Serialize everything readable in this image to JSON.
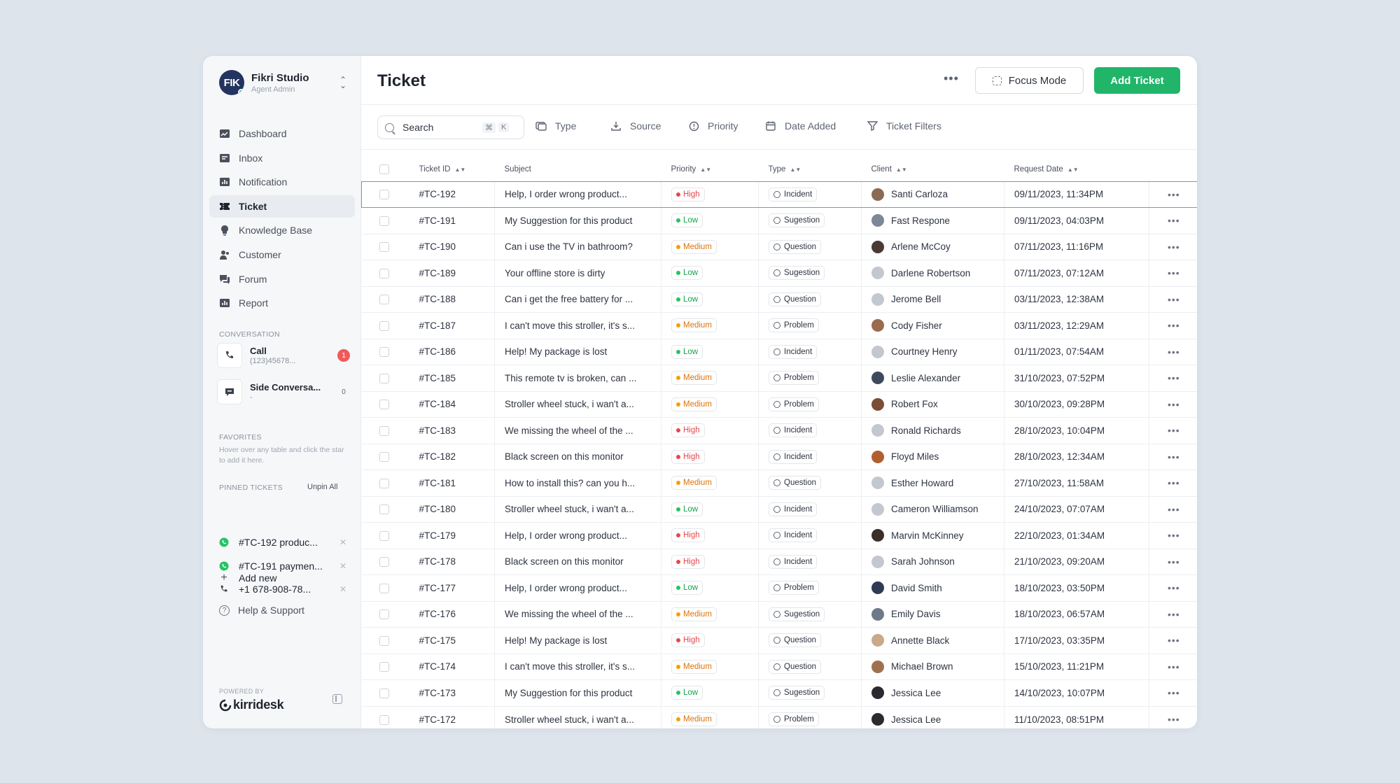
{
  "workspace": {
    "initials": "FIK",
    "name": "Fikri Studio",
    "role": "Agent Admin"
  },
  "nav": [
    {
      "label": "Dashboard",
      "icon": "dashboard-icon",
      "active": false
    },
    {
      "label": "Inbox",
      "icon": "inbox-icon",
      "active": false
    },
    {
      "label": "Notification",
      "icon": "notification-icon",
      "active": false
    },
    {
      "label": "Ticket",
      "icon": "ticket-icon",
      "active": true
    },
    {
      "label": "Knowledge Base",
      "icon": "knowledge-base-icon",
      "active": false
    },
    {
      "label": "Customer",
      "icon": "customer-icon",
      "active": false
    },
    {
      "label": "Forum",
      "icon": "forum-icon",
      "active": false
    },
    {
      "label": "Report",
      "icon": "report-icon",
      "active": false
    }
  ],
  "conversation": {
    "label": "CONVERSATION",
    "items": [
      {
        "title": "Call",
        "sub": "(123)45678...",
        "badge": "1",
        "icon": "phone-icon"
      },
      {
        "title": "Side Conversa...",
        "sub": "-",
        "badge": "0",
        "icon": "chat-icon"
      }
    ]
  },
  "favorites": {
    "label": "FAVORITES",
    "hint": "Hover over any table and click the star to add it here."
  },
  "pinned": {
    "label": "PINNED TICKETS",
    "unpin_all": "Unpin All",
    "items": [
      {
        "label": "#TC-192 produc...",
        "icon": "whatsapp-icon"
      },
      {
        "label": "#TC-191 paymen...",
        "icon": "whatsapp-icon"
      },
      {
        "label": "+1 678-908-78...",
        "icon": "phone-icon"
      }
    ],
    "add_new": "Add new"
  },
  "help": "Help & Support",
  "powered_by": "POWERED BY",
  "brand": "kirridesk",
  "header": {
    "title": "Ticket",
    "focus_mode": "Focus Mode",
    "add_ticket": "Add Ticket"
  },
  "toolbar": {
    "search_placeholder": "Search",
    "shortcut_cmd": "⌘",
    "shortcut_key": "K",
    "filters": [
      "Type",
      "Source",
      "Priority",
      "Date Added",
      "Ticket Filters"
    ]
  },
  "table": {
    "columns": [
      "Ticket ID",
      "Subject",
      "Priority",
      "Type",
      "Client",
      "Request Date"
    ],
    "rows": [
      {
        "id": "#TC-192",
        "subject": "Help, I order wrong product...",
        "priority": "High",
        "type": "Incident",
        "client": "Santi Carloza",
        "date": "09/11/2023, 11:34PM",
        "avatar": "#8a6a55"
      },
      {
        "id": "#TC-191",
        "subject": "My Suggestion for this product",
        "priority": "Low",
        "type": "Sugestion",
        "client": "Fast Respone",
        "date": "09/11/2023, 04:03PM",
        "avatar": "#7d8796"
      },
      {
        "id": "#TC-190",
        "subject": "Can i use the TV in bathroom?",
        "priority": "Medium",
        "type": "Question",
        "client": "Arlene McCoy",
        "date": "07/11/2023, 11:16PM",
        "avatar": "#4a3a33"
      },
      {
        "id": "#TC-189",
        "subject": "Your offline store is dirty",
        "priority": "Low",
        "type": "Sugestion",
        "client": "Darlene Robertson",
        "date": "07/11/2023, 07:12AM",
        "avatar": "#c3c8d0"
      },
      {
        "id": "#TC-188",
        "subject": "Can i get the free battery for ...",
        "priority": "Low",
        "type": "Question",
        "client": "Jerome Bell",
        "date": "03/11/2023, 12:38AM",
        "avatar": "#c3c8d0"
      },
      {
        "id": "#TC-187",
        "subject": "I can't move this stroller, it's s...",
        "priority": "Medium",
        "type": "Problem",
        "client": "Cody Fisher",
        "date": "03/11/2023, 12:29AM",
        "avatar": "#9a6b4e"
      },
      {
        "id": "#TC-186",
        "subject": "Help! My package is lost",
        "priority": "Low",
        "type": "Incident",
        "client": "Courtney Henry",
        "date": "01/11/2023, 07:54AM",
        "avatar": "#c3c8d0"
      },
      {
        "id": "#TC-185",
        "subject": "This remote tv is broken, can ...",
        "priority": "Medium",
        "type": "Problem",
        "client": "Leslie Alexander",
        "date": "31/10/2023, 07:52PM",
        "avatar": "#3e4a5c"
      },
      {
        "id": "#TC-184",
        "subject": "Stroller wheel stuck, i wan't a...",
        "priority": "Medium",
        "type": "Problem",
        "client": "Robert Fox",
        "date": "30/10/2023, 09:28PM",
        "avatar": "#7a4e36"
      },
      {
        "id": "#TC-183",
        "subject": "We missing the wheel of the ...",
        "priority": "High",
        "type": "Incident",
        "client": "Ronald Richards",
        "date": "28/10/2023, 10:04PM",
        "avatar": "#c3c8d0"
      },
      {
        "id": "#TC-182",
        "subject": "Black screen on this monitor",
        "priority": "High",
        "type": "Incident",
        "client": "Floyd Miles",
        "date": "28/10/2023, 12:34AM",
        "avatar": "#b0602e"
      },
      {
        "id": "#TC-181",
        "subject": "How to install this? can you h...",
        "priority": "Medium",
        "type": "Question",
        "client": "Esther Howard",
        "date": "27/10/2023, 11:58AM",
        "avatar": "#c3c8d0"
      },
      {
        "id": "#TC-180",
        "subject": "Stroller wheel stuck, i wan't a...",
        "priority": "Low",
        "type": "Incident",
        "client": "Cameron Williamson",
        "date": "24/10/2023, 07:07AM",
        "avatar": "#c3c8d0"
      },
      {
        "id": "#TC-179",
        "subject": "Help, I order wrong product...",
        "priority": "High",
        "type": "Incident",
        "client": "Marvin McKinney",
        "date": "22/10/2023, 01:34AM",
        "avatar": "#3b2f2a"
      },
      {
        "id": "#TC-178",
        "subject": "Black screen on this monitor",
        "priority": "High",
        "type": "Incident",
        "client": "Sarah Johnson",
        "date": "21/10/2023, 09:20AM",
        "avatar": "#c3c8d0"
      },
      {
        "id": "#TC-177",
        "subject": "Help, I order wrong product...",
        "priority": "Low",
        "type": "Problem",
        "client": "David Smith",
        "date": "18/10/2023, 03:50PM",
        "avatar": "#2f3b55"
      },
      {
        "id": "#TC-176",
        "subject": "We missing the wheel of the ...",
        "priority": "Medium",
        "type": "Sugestion",
        "client": "Emily Davis",
        "date": "18/10/2023, 06:57AM",
        "avatar": "#6e7a8a"
      },
      {
        "id": "#TC-175",
        "subject": "Help! My package is lost",
        "priority": "High",
        "type": "Question",
        "client": "Annette Black",
        "date": "17/10/2023, 03:35PM",
        "avatar": "#c9a98a"
      },
      {
        "id": "#TC-174",
        "subject": "I can't move this stroller, it's s...",
        "priority": "Medium",
        "type": "Question",
        "client": "Michael Brown",
        "date": "15/10/2023, 11:21PM",
        "avatar": "#a0704e"
      },
      {
        "id": "#TC-173",
        "subject": "My Suggestion for this product",
        "priority": "Low",
        "type": "Sugestion",
        "client": "Jessica Lee",
        "date": "14/10/2023, 10:07PM",
        "avatar": "#2c2a2e"
      },
      {
        "id": "#TC-172",
        "subject": "Stroller wheel stuck, i wan't a...",
        "priority": "Medium",
        "type": "Problem",
        "client": "Jessica Lee",
        "date": "11/10/2023, 08:51PM",
        "avatar": "#2c2a2e"
      }
    ]
  },
  "colors": {
    "accent": "#21b56a",
    "selected_border": "#5b9cf0",
    "high": "#e5484d",
    "low": "#16a34a",
    "medium": "#d9730d"
  }
}
